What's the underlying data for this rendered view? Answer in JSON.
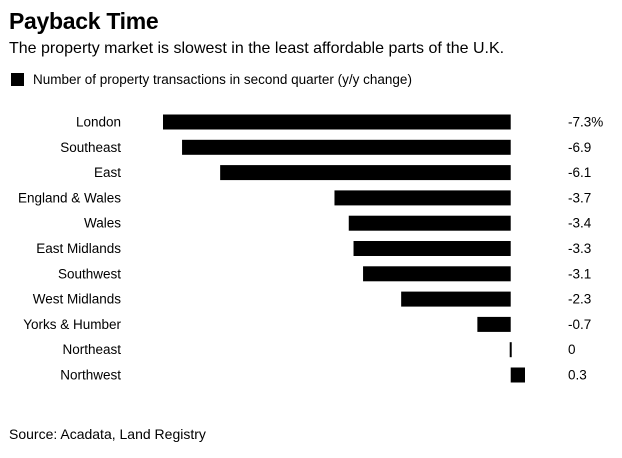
{
  "chart_data": {
    "type": "bar",
    "orientation": "horizontal",
    "title": "Payback Time",
    "subtitle": "The property market is slowest in the least affordable parts of the U.K.",
    "legend": [
      "Number of property transactions in second quarter (y/y change)"
    ],
    "categories": [
      "London",
      "Southeast",
      "East",
      "England & Wales",
      "Wales",
      "East Midlands",
      "Southwest",
      "West Midlands",
      "Yorks & Humber",
      "Northeast",
      "Northwest"
    ],
    "values": [
      -7.3,
      -6.9,
      -6.1,
      -3.7,
      -3.4,
      -3.3,
      -3.1,
      -2.3,
      -0.7,
      0,
      0.3
    ],
    "value_labels": [
      "-7.3%",
      "-6.9",
      "-6.1",
      "-3.7",
      "-3.4",
      "-3.3",
      "-3.1",
      "-2.3",
      "-0.7",
      "0",
      "0.3"
    ],
    "xlim": [
      -7.3,
      0.3
    ],
    "xlabel": "",
    "ylabel": "",
    "grid": false,
    "bar_color": "#000000",
    "source": "Source: Acadata, Land Registry"
  }
}
